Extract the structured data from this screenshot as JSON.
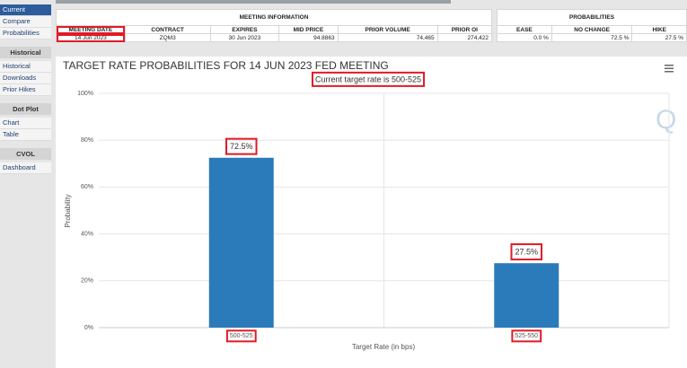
{
  "sidebar": {
    "items": [
      "Current",
      "Compare",
      "Probabilities"
    ],
    "sections": [
      {
        "title": "Historical",
        "items": [
          "Historical",
          "Downloads",
          "Prior Hikes"
        ]
      },
      {
        "title": "Dot Plot",
        "items": [
          "Chart",
          "Table"
        ]
      },
      {
        "title": "CVOL",
        "items": [
          "Dashboard"
        ]
      }
    ]
  },
  "meeting_table": {
    "title": "MEETING INFORMATION",
    "columns": [
      "MEETING DATE",
      "CONTRACT",
      "EXPIRES",
      "MID PRICE",
      "PRIOR VOLUME",
      "PRIOR OI"
    ],
    "row": [
      "14 Jun 2023",
      "ZQM3",
      "30 Jun 2023",
      "94.8863",
      "74,465",
      "274,422"
    ]
  },
  "probabilities_table": {
    "title": "PROBABILITIES",
    "columns": [
      "EASE",
      "NO CHANGE",
      "HIKE"
    ],
    "row": [
      "0.0 %",
      "72.5 %",
      "27.5 %"
    ]
  },
  "chart_data": {
    "type": "bar",
    "title": "TARGET RATE PROBABILITIES FOR 14 JUN 2023 FED MEETING",
    "subtitle": "Current target rate is 500-525",
    "x_label": "Target Rate (in bps)",
    "y_label": "Probability",
    "categories": [
      "500-525",
      "525-550"
    ],
    "values": [
      72.5,
      27.5
    ],
    "value_labels": [
      "72.5%",
      "27.5%"
    ],
    "color": "#2b7bba",
    "ylim": [
      0,
      100
    ],
    "yticks": [
      {
        "value": 0,
        "label": "0%"
      },
      {
        "value": 20,
        "label": "20%"
      },
      {
        "value": 40,
        "label": "40%"
      },
      {
        "value": 60,
        "label": "60%"
      },
      {
        "value": 80,
        "label": "80%"
      },
      {
        "value": 100,
        "label": "100%"
      }
    ],
    "grid": true
  }
}
